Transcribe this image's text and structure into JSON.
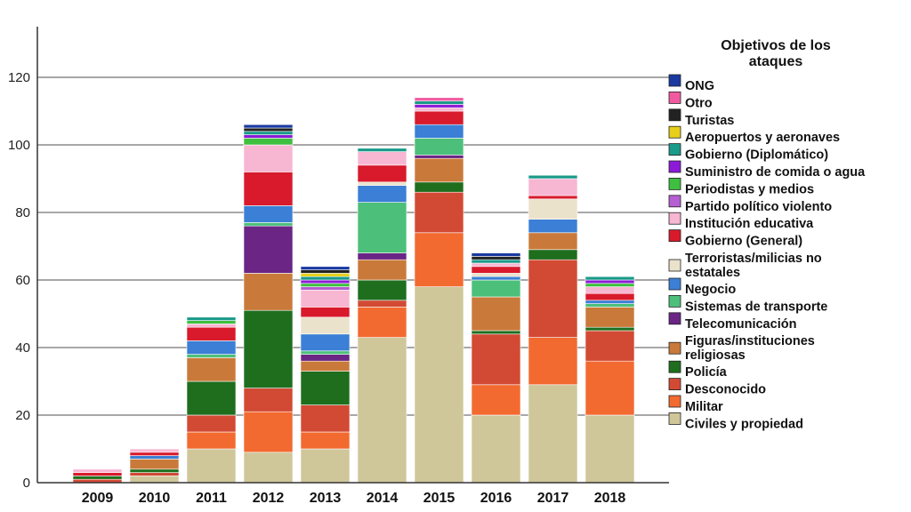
{
  "chart_data": {
    "type": "bar",
    "stacked": true,
    "categories": [
      "2009",
      "2010",
      "2011",
      "2012",
      "2013",
      "2014",
      "2015",
      "2016",
      "2017",
      "2018"
    ],
    "ylim": [
      0,
      135
    ],
    "yticks": [
      0,
      20,
      40,
      60,
      80,
      100,
      120
    ],
    "grid": true,
    "legend_position": "right",
    "legend_title_lines": [
      "Objetivos de los",
      "ataques"
    ],
    "series": [
      {
        "name": "Civiles y propiedad",
        "color": "#cfc69a",
        "values": [
          0,
          2,
          10,
          9,
          10,
          43,
          58,
          20,
          29,
          20
        ]
      },
      {
        "name": "Militar",
        "color": "#f26a30",
        "values": [
          0,
          0,
          5,
          12,
          5,
          9,
          16,
          9,
          14,
          16
        ]
      },
      {
        "name": "Desconocido",
        "color": "#d24a34",
        "values": [
          1,
          1,
          5,
          7,
          8,
          2,
          12,
          15,
          23,
          9
        ]
      },
      {
        "name": "Policía",
        "color": "#1e6e1e",
        "values": [
          1,
          1,
          10,
          23,
          10,
          6,
          3,
          1,
          3,
          1
        ]
      },
      {
        "name": "Figuras/instituciones religiosas",
        "color": "#c97a3a",
        "values": [
          0,
          3,
          7,
          11,
          3,
          6,
          7,
          10,
          5,
          6
        ]
      },
      {
        "name": "Telecomunicación",
        "color": "#6a2585",
        "values": [
          0,
          0,
          0,
          14,
          2,
          2,
          1,
          0,
          0,
          0
        ]
      },
      {
        "name": "Sistemas de transporte",
        "color": "#4cc07a",
        "values": [
          0,
          0,
          1,
          1,
          1,
          15,
          5,
          5,
          0,
          1
        ]
      },
      {
        "name": "Negocio",
        "color": "#3b7fd6",
        "values": [
          0,
          1,
          4,
          5,
          5,
          5,
          4,
          1,
          4,
          1
        ]
      },
      {
        "name": "Terroristas/milicias no estatales",
        "color": "#ebe2cc",
        "values": [
          0,
          0,
          0,
          0,
          5,
          1,
          0,
          1,
          6,
          0
        ]
      },
      {
        "name": "Gobierno (General)",
        "color": "#d81a2c",
        "values": [
          1,
          1,
          4,
          10,
          3,
          5,
          4,
          2,
          1,
          2
        ]
      },
      {
        "name": "Institución educativa",
        "color": "#f7b6d2",
        "values": [
          1,
          1,
          1,
          8,
          5,
          4,
          1,
          1,
          5,
          2
        ]
      },
      {
        "name": "Partido político violento",
        "color": "#b55fd1",
        "values": [
          0,
          0,
          0,
          0,
          1,
          0,
          0,
          0,
          0,
          0
        ]
      },
      {
        "name": "Periodistas y medios",
        "color": "#3fbf3f",
        "values": [
          0,
          0,
          1,
          2,
          1,
          0,
          0,
          0,
          0,
          1
        ]
      },
      {
        "name": "Suministro de comida o agua",
        "color": "#8c1ad8",
        "values": [
          0,
          0,
          0,
          1,
          1,
          0,
          1,
          0,
          0,
          1
        ]
      },
      {
        "name": "Gobierno (Diplomático)",
        "color": "#1a9a8a",
        "values": [
          0,
          0,
          1,
          1,
          1,
          1,
          1,
          1,
          1,
          1
        ]
      },
      {
        "name": "Aeropuertos y aeronaves",
        "color": "#e8cf1a",
        "values": [
          0,
          0,
          0,
          0,
          1,
          0,
          0,
          0,
          0,
          0
        ]
      },
      {
        "name": "Turistas",
        "color": "#222222",
        "values": [
          0,
          0,
          0,
          1,
          1,
          0,
          0,
          1,
          0,
          0
        ]
      },
      {
        "name": "Otro",
        "color": "#f25aa0",
        "values": [
          0,
          0,
          0,
          0,
          0,
          0,
          1,
          0,
          0,
          0
        ]
      },
      {
        "name": "ONG",
        "color": "#1a3aa0",
        "values": [
          0,
          0,
          0,
          1,
          1,
          0,
          0,
          1,
          0,
          0
        ]
      }
    ],
    "legend_order": [
      18,
      17,
      16,
      15,
      14,
      13,
      12,
      11,
      10,
      9,
      8,
      7,
      6,
      5,
      4,
      3,
      2,
      1,
      0
    ],
    "legend_label_lines": {
      "8": [
        "Terroristas/milicias no",
        "estatales"
      ],
      "4": [
        "Figuras/instituciones",
        "religiosas"
      ]
    }
  }
}
